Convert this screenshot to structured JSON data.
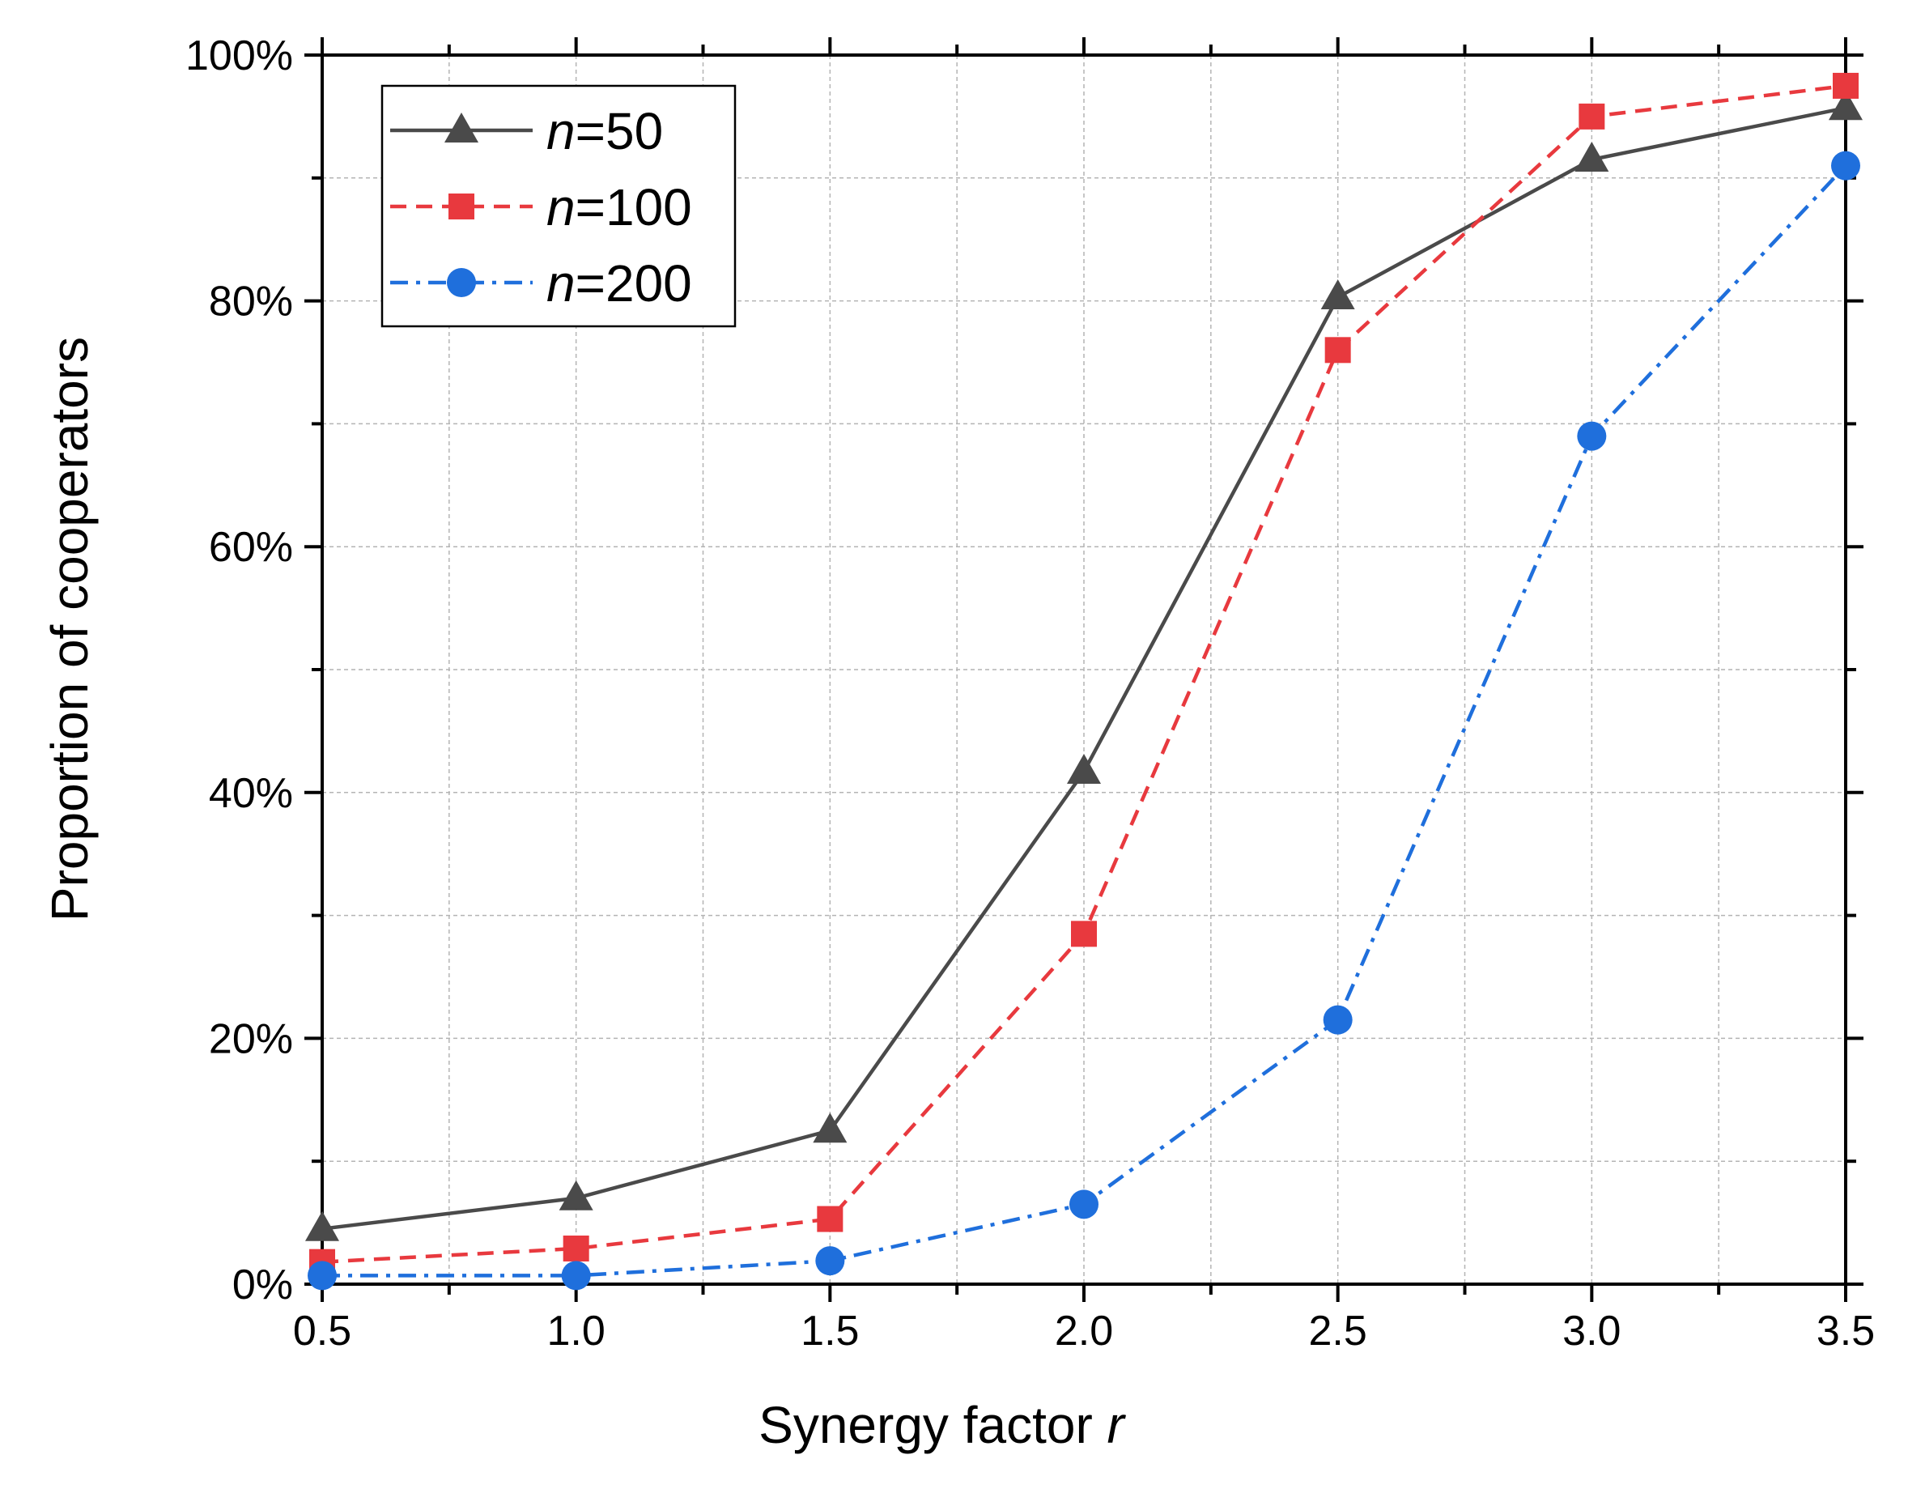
{
  "chart_data": {
    "type": "line",
    "title": "",
    "xlabel": "Synergy factor",
    "xlabel_var": "r",
    "ylabel": "Proportion of cooperators",
    "x": [
      0.5,
      1.0,
      1.5,
      2.0,
      2.5,
      3.0,
      3.5
    ],
    "xlim": [
      0.5,
      3.5
    ],
    "ylim": [
      0,
      100
    ],
    "x_ticks": [
      "0.5",
      "1.0",
      "1.5",
      "2.0",
      "2.5",
      "3.0",
      "3.5"
    ],
    "y_ticks": [
      "0%",
      "20%",
      "40%",
      "60%",
      "80%",
      "100%"
    ],
    "grid": true,
    "legend_position": "top-left",
    "series": [
      {
        "name": "n=50",
        "label_var": "n",
        "label_value": "=50",
        "values": [
          4.5,
          7.0,
          12.5,
          41.7,
          80.3,
          91.5,
          95.7
        ],
        "color": "#4a4a4a",
        "marker": "triangle",
        "line_style": "solid"
      },
      {
        "name": "n=100",
        "label_var": "n",
        "label_value": "=100",
        "values": [
          1.8,
          2.9,
          5.3,
          28.5,
          76.0,
          95.0,
          97.5
        ],
        "color": "#e8393e",
        "marker": "square",
        "line_style": "dashed"
      },
      {
        "name": "n=200",
        "label_var": "n",
        "label_value": "=200",
        "values": [
          0.7,
          0.7,
          1.9,
          6.5,
          21.5,
          69.0,
          91.0
        ],
        "color": "#1f6fdc",
        "marker": "circle",
        "line_style": "dashdot"
      }
    ]
  }
}
